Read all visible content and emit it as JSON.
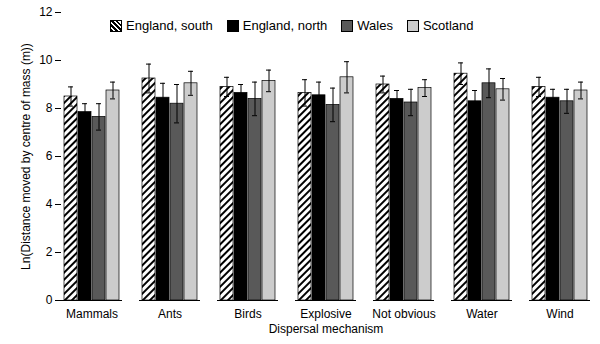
{
  "chart_data": {
    "type": "bar",
    "x_label": "Dispersal mechanism",
    "y_label": "Ln(Distance moved by centre of mass (m))",
    "categories": [
      "Mammals",
      "Ants",
      "Birds",
      "Explosive",
      "Not obvious",
      "Water",
      "Wind"
    ],
    "series": [
      {
        "name": "England, south",
        "color": "#000000",
        "marker": "hatch",
        "values": [
          8.5,
          9.25,
          8.9,
          8.65,
          9.0,
          9.45,
          8.9
        ],
        "errors": [
          0.4,
          0.6,
          0.4,
          0.55,
          0.35,
          0.45,
          0.4
        ]
      },
      {
        "name": "England, north",
        "color": "#000000",
        "values": [
          7.85,
          8.45,
          8.65,
          8.55,
          8.4,
          8.3,
          8.45
        ],
        "errors": [
          0.35,
          0.6,
          0.35,
          0.55,
          0.35,
          0.45,
          0.35
        ]
      },
      {
        "name": "Wales",
        "color": "#595959",
        "values": [
          7.65,
          8.2,
          8.4,
          8.15,
          8.25,
          9.05,
          8.3
        ],
        "errors": [
          0.55,
          0.8,
          0.7,
          0.7,
          0.55,
          0.6,
          0.5
        ]
      },
      {
        "name": "Scotland",
        "color": "#cccccc",
        "values": [
          8.75,
          9.05,
          9.15,
          9.3,
          8.85,
          8.8,
          8.75
        ],
        "errors": [
          0.35,
          0.5,
          0.45,
          0.65,
          0.35,
          0.45,
          0.35
        ]
      }
    ],
    "ylim": [
      0,
      12
    ],
    "yticks": [
      0,
      2,
      4,
      6,
      8,
      10,
      12
    ],
    "legend": "top",
    "grid": false
  }
}
